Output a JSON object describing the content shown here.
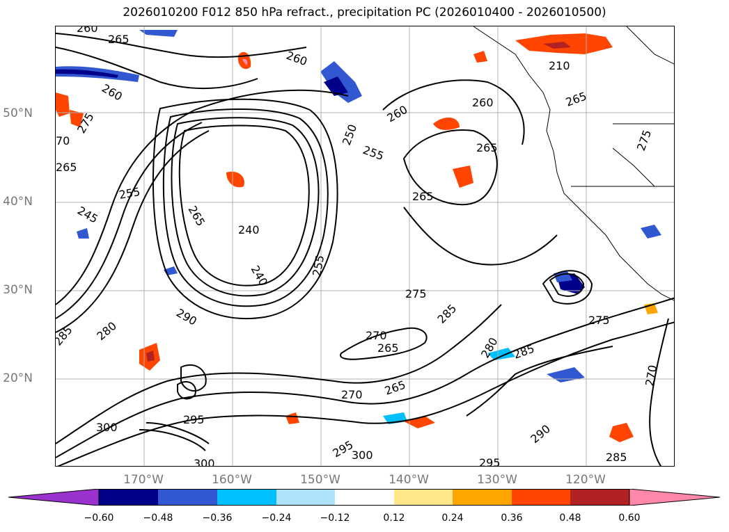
{
  "title": "2026010200 F012 850 hPa refract., precipitation PC (2026010400 - 2026010500)",
  "lat_labels": [
    "50°N",
    "40°N",
    "30°N",
    "20°N"
  ],
  "lon_labels": [
    "170°W",
    "160°W",
    "150°W",
    "140°W",
    "130°W",
    "120°W"
  ],
  "colorbar": {
    "ticks": [
      "−0.60",
      "−0.48",
      "−0.36",
      "−0.24",
      "−0.12",
      "0.12",
      "0.24",
      "0.36",
      "0.48",
      "0.60"
    ],
    "colors": [
      "#9a32cd",
      "#00008b",
      "#3158d0",
      "#00bfff",
      "#afe3fb",
      "#ffffff",
      "#ffe88a",
      "#ffa500",
      "#ff4500",
      "#b22222",
      "#ff88aa"
    ]
  },
  "contour_labels": [
    "260",
    "265",
    "260",
    "260",
    "275",
    "70",
    "265",
    "255",
    "245",
    "240",
    "265",
    "240",
    "250",
    "255",
    "260",
    "255",
    "265",
    "265",
    "260",
    "210",
    "265",
    "275",
    "275",
    "285",
    "270",
    "265",
    "290",
    "280",
    "285",
    "270",
    "265",
    "300",
    "295",
    "300",
    "295",
    "300",
    "295",
    "290",
    "280",
    "285",
    "270",
    "275",
    "285"
  ]
}
